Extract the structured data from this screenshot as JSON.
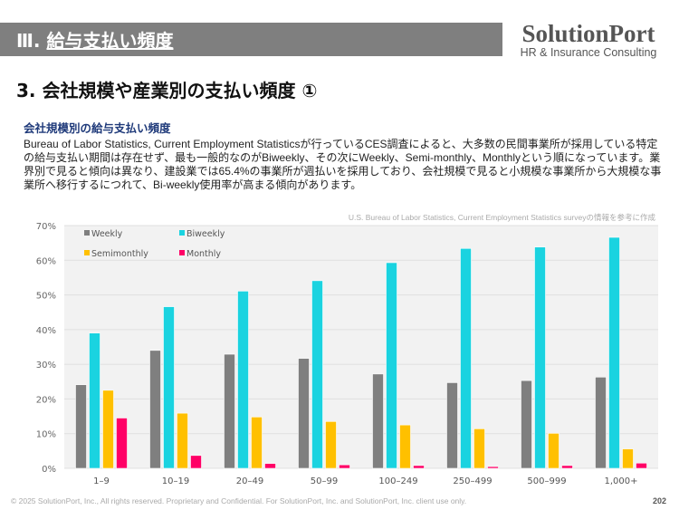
{
  "header": {
    "section_num": "Ⅲ.",
    "section_title": "給与支払い頻度",
    "logo_main": "SolutionPort",
    "logo_sub": "HR & Insurance Consulting"
  },
  "title": "3. 会社規模や産業別の支払い頻度 ①",
  "subtitle": "会社規模別の給与支払い頻度",
  "body": "Bureau of Labor Statistics, Current Employment Statisticsが行っているCES調査によると、大多数の民間事業所が採用している特定の給与支払い期間は存在せず、最も一般的なのがBiweekly、その次にWeekly、Semi-monthly、Monthlyという順になっています。業界別で見ると傾向は異なり、建設業では65.4%の事業所が週払いを採用しており、会社規模で見ると小規模な事業所から大規模な事業所へ移行するにつれて、Bi-weekly使用率が高まる傾向があります。",
  "source": "U.S. Bureau of Labor Statistics, Current Employment Statistics surveyの情報を参考に作成",
  "footer": "© 2025 SolutionPort, Inc., All rights reserved. Proprietary and Confidential. For SolutionPort, Inc. and SolutionPort, Inc. client use only.",
  "page_number": "202",
  "chart_data": {
    "type": "bar",
    "categories": [
      "1–9",
      "10–19",
      "20–49",
      "50–99",
      "100–249",
      "250–499",
      "500–999",
      "1,000+"
    ],
    "series": [
      {
        "name": "Weekly",
        "color": "#7f7f7f",
        "values": [
          24.1,
          34.0,
          32.9,
          31.7,
          27.2,
          24.7,
          25.3,
          26.3
        ]
      },
      {
        "name": "Biweekly",
        "color": "#1ad3e0",
        "values": [
          39.0,
          46.6,
          51.1,
          54.1,
          59.3,
          63.4,
          63.8,
          66.6
        ]
      },
      {
        "name": "Semimonthly",
        "color": "#ffc000",
        "values": [
          22.5,
          15.9,
          14.8,
          13.5,
          12.5,
          11.4,
          10.1,
          5.6
        ]
      },
      {
        "name": "Monthly",
        "color": "#ff0066",
        "values": [
          14.5,
          3.7,
          1.4,
          1.0,
          0.8,
          0.5,
          0.8,
          1.5
        ]
      }
    ],
    "yticks": [
      "0%",
      "10%",
      "20%",
      "30%",
      "40%",
      "50%",
      "60%",
      "70%"
    ],
    "ylim": [
      0,
      70
    ],
    "grid": true,
    "legend": "top-left"
  }
}
